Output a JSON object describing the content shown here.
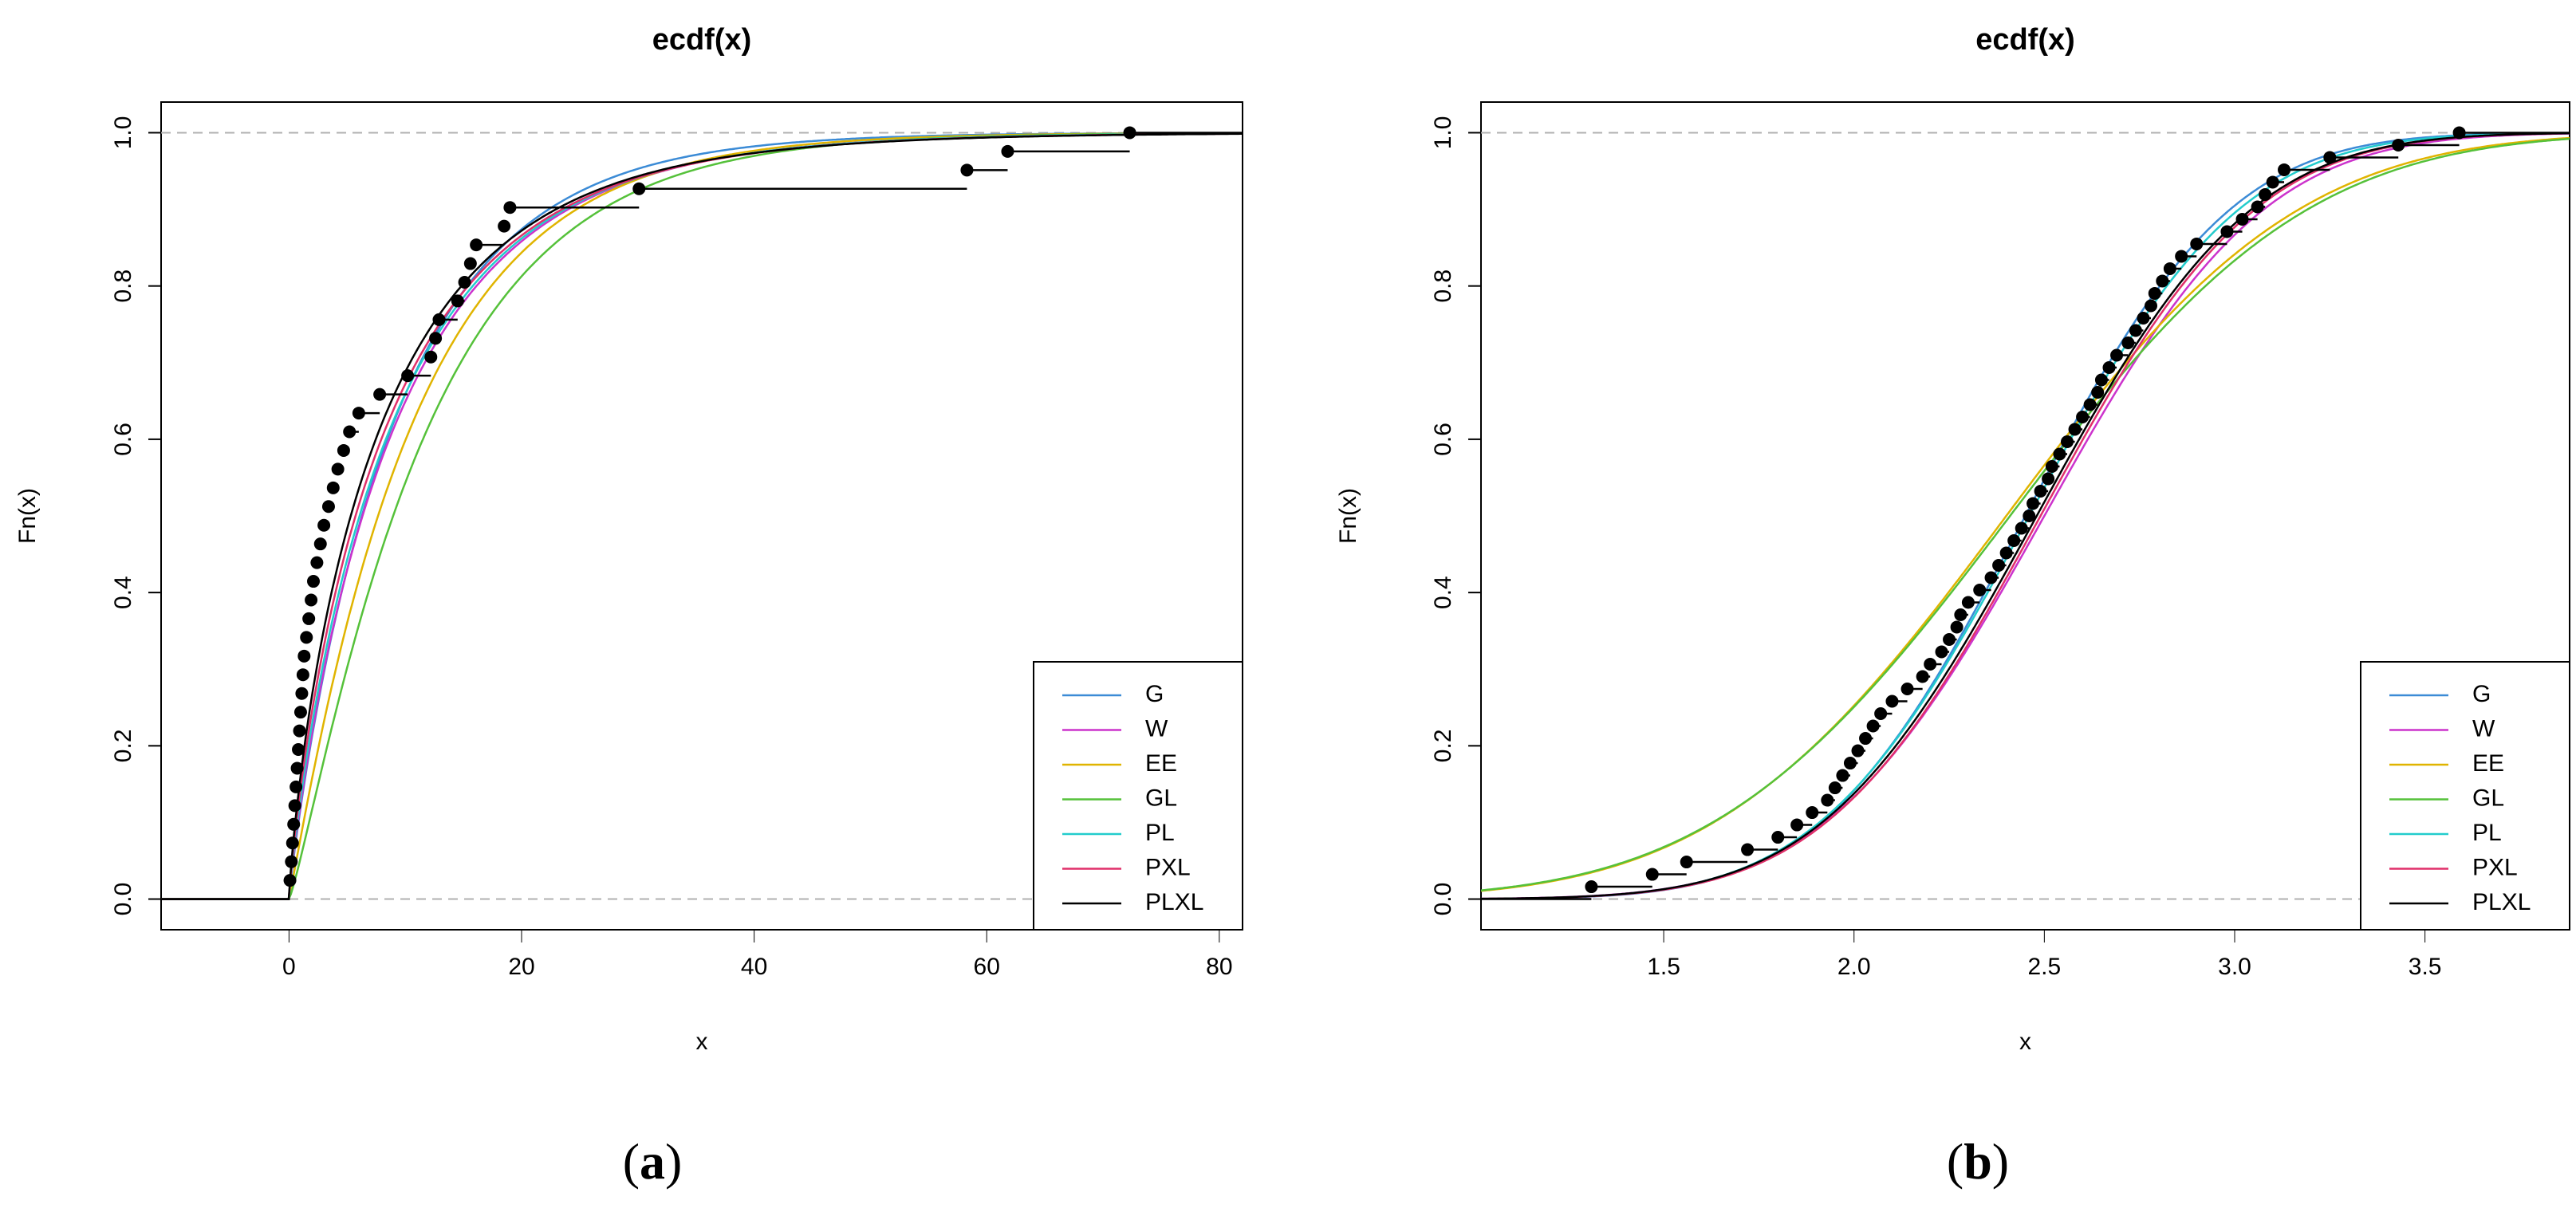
{
  "chart_data": [
    {
      "type": "line",
      "panel_label_open": "(",
      "panel_label": "a",
      "panel_label_close": ")",
      "title": "ecdf(x)",
      "xlabel": "x",
      "ylabel": "Fn(x)",
      "xlim": [
        -11,
        82
      ],
      "ylim": [
        -0.04,
        1.04
      ],
      "xticks": [
        0,
        20,
        40,
        60,
        80
      ],
      "yticks": [
        0.0,
        0.2,
        0.4,
        0.6,
        0.8,
        1.0
      ],
      "hlines": [
        0,
        1
      ],
      "legend_position": "bottom-right",
      "ecdf_x": [
        0.08,
        0.2,
        0.3,
        0.4,
        0.5,
        0.6,
        0.7,
        0.8,
        0.9,
        1.0,
        1.1,
        1.2,
        1.3,
        1.5,
        1.7,
        1.9,
        2.1,
        2.4,
        2.7,
        3.0,
        3.4,
        3.8,
        4.2,
        4.7,
        5.2,
        6.0,
        7.8,
        10.2,
        12.2,
        12.6,
        12.9,
        14.5,
        15.1,
        15.6,
        16.1,
        18.5,
        19.0,
        30.1,
        58.3,
        61.8,
        72.3
      ],
      "series": [
        {
          "name": "G",
          "color": "#3b8bd6",
          "dist": "gamma",
          "params": {
            "shape": 0.9,
            "scale": 10.5
          }
        },
        {
          "name": "W",
          "color": "#cc33cc",
          "dist": "weibull",
          "params": {
            "k": 0.9,
            "lambda": 9.5
          }
        },
        {
          "name": "EE",
          "color": "#e0b400",
          "dist": "expexp",
          "params": {
            "alpha": 1.05,
            "rate": 0.095
          }
        },
        {
          "name": "GL",
          "color": "#55c13a",
          "dist": "expexp",
          "params": {
            "alpha": 1.2,
            "rate": 0.092
          }
        },
        {
          "name": "PL",
          "color": "#22cccc",
          "dist": "weibull",
          "params": {
            "k": 0.88,
            "lambda": 9.2
          }
        },
        {
          "name": "PXL",
          "color": "#e0306a",
          "dist": "weibull",
          "params": {
            "k": 0.85,
            "lambda": 8.8
          }
        },
        {
          "name": "PLXL",
          "color": "#000000",
          "dist": "weibull",
          "params": {
            "k": 0.82,
            "lambda": 8.3
          }
        }
      ]
    },
    {
      "type": "line",
      "panel_label_open": "(",
      "panel_label": "b",
      "panel_label_close": ")",
      "title": "ecdf(x)",
      "xlabel": "x",
      "ylabel": "Fn(x)",
      "xlim": [
        1.02,
        3.88
      ],
      "ylim": [
        -0.04,
        1.04
      ],
      "xticks": [
        1.5,
        2.0,
        2.5,
        3.0,
        3.5
      ],
      "yticks": [
        0.0,
        0.2,
        0.4,
        0.6,
        0.8,
        1.0
      ],
      "hlines": [
        0,
        1
      ],
      "legend_position": "bottom-right",
      "ecdf_x": [
        1.31,
        1.47,
        1.56,
        1.72,
        1.8,
        1.85,
        1.89,
        1.93,
        1.95,
        1.97,
        1.99,
        2.01,
        2.03,
        2.05,
        2.07,
        2.1,
        2.14,
        2.18,
        2.2,
        2.23,
        2.25,
        2.27,
        2.28,
        2.3,
        2.33,
        2.36,
        2.38,
        2.4,
        2.42,
        2.44,
        2.46,
        2.47,
        2.49,
        2.51,
        2.52,
        2.54,
        2.56,
        2.58,
        2.6,
        2.62,
        2.64,
        2.65,
        2.67,
        2.69,
        2.72,
        2.74,
        2.76,
        2.78,
        2.79,
        2.81,
        2.83,
        2.86,
        2.9,
        2.98,
        3.02,
        3.06,
        3.08,
        3.1,
        3.13,
        3.25,
        3.43,
        3.59
      ],
      "series": [
        {
          "name": "G",
          "color": "#3b8bd6",
          "dist": "normal",
          "params": {
            "mu": 2.45,
            "sigma": 0.42
          }
        },
        {
          "name": "W",
          "color": "#cc33cc",
          "dist": "normal",
          "params": {
            "mu": 2.5,
            "sigma": 0.45
          }
        },
        {
          "name": "EE",
          "color": "#e0b400",
          "dist": "normal",
          "params": {
            "mu": 2.4,
            "sigma": 0.6
          }
        },
        {
          "name": "GL",
          "color": "#55c13a",
          "dist": "normal",
          "params": {
            "mu": 2.41,
            "sigma": 0.61
          }
        },
        {
          "name": "PL",
          "color": "#22cccc",
          "dist": "normal",
          "params": {
            "mu": 2.46,
            "sigma": 0.43
          }
        },
        {
          "name": "PXL",
          "color": "#e0306a",
          "dist": "normal",
          "params": {
            "mu": 2.49,
            "sigma": 0.44
          }
        },
        {
          "name": "PLXL",
          "color": "#000000",
          "dist": "normal",
          "params": {
            "mu": 2.48,
            "sigma": 0.44
          }
        }
      ]
    }
  ]
}
